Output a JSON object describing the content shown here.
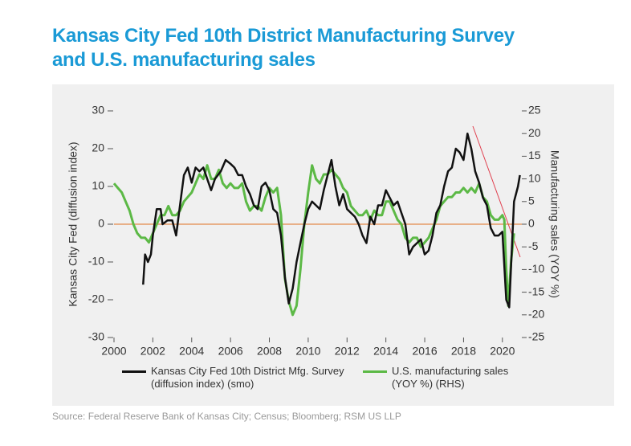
{
  "chart_data": {
    "type": "line",
    "title": "Kansas City Fed 10th District Manufacturing Survey and U.S. manufacturing sales",
    "ylabel": "Kansas City Fed (diffusion index)",
    "y2label": "Manufacturing sales (YOY %)",
    "source": "Source: Federal Reserve Bank of Kansas City; Census; Bloomberg; RSM US LLP",
    "xlim": [
      2000,
      2021
    ],
    "xticks": [
      2000,
      2002,
      2004,
      2006,
      2008,
      2010,
      2012,
      2014,
      2016,
      2018,
      2020
    ],
    "ylim": [
      -30,
      30
    ],
    "yticks": [
      -30,
      -20,
      -10,
      0,
      10,
      20,
      30
    ],
    "y2lim": [
      -25,
      25
    ],
    "y2ticks": [
      -25,
      -20,
      -15,
      -10,
      -5,
      0,
      5,
      10,
      15,
      20,
      25
    ],
    "series": [
      {
        "name": "Kansas City Fed 10th District Mfg. Survey (diffusion index) (smo)",
        "color": "#111111",
        "x": [
          2001.5,
          2001.6,
          2001.75,
          2001.9,
          2002.0,
          2002.2,
          2002.4,
          2002.5,
          2002.75,
          2003.0,
          2003.2,
          2003.4,
          2003.6,
          2003.8,
          2004.0,
          2004.2,
          2004.4,
          2004.6,
          2004.8,
          2005.0,
          2005.2,
          2005.5,
          2005.75,
          2006.0,
          2006.2,
          2006.4,
          2006.6,
          2006.8,
          2007.0,
          2007.2,
          2007.4,
          2007.6,
          2007.8,
          2008.0,
          2008.2,
          2008.4,
          2008.6,
          2008.8,
          2009.0,
          2009.2,
          2009.4,
          2009.6,
          2009.8,
          2010.0,
          2010.2,
          2010.4,
          2010.6,
          2010.8,
          2011.0,
          2011.2,
          2011.4,
          2011.6,
          2011.8,
          2012.0,
          2012.2,
          2012.4,
          2012.6,
          2012.8,
          2013.0,
          2013.2,
          2013.4,
          2013.6,
          2013.8,
          2014.0,
          2014.2,
          2014.4,
          2014.6,
          2014.8,
          2015.0,
          2015.2,
          2015.4,
          2015.6,
          2015.8,
          2016.0,
          2016.2,
          2016.4,
          2016.6,
          2016.8,
          2017.0,
          2017.2,
          2017.4,
          2017.6,
          2017.8,
          2018.0,
          2018.2,
          2018.4,
          2018.6,
          2018.8,
          2019.0,
          2019.2,
          2019.4,
          2019.6,
          2019.8,
          2020.0,
          2020.2,
          2020.35,
          2020.5,
          2020.6,
          2020.8,
          2020.9
        ],
        "values": [
          -16,
          -8,
          -10,
          -8,
          -3,
          4,
          4,
          0,
          1,
          1,
          -3,
          5,
          13,
          15,
          11,
          15,
          14,
          15,
          12,
          9,
          12,
          14,
          17,
          16,
          15,
          13,
          13,
          10,
          8,
          5,
          4,
          10,
          11,
          9,
          4,
          3,
          -3,
          -14,
          -21,
          -17,
          -10,
          -5,
          0,
          4,
          6,
          5,
          4,
          9,
          13,
          17,
          10,
          5,
          8,
          4,
          3,
          2,
          0,
          -3,
          -5,
          2,
          0,
          5,
          5,
          9,
          7,
          5,
          6,
          3,
          0,
          -8,
          -6,
          -5,
          -4,
          -8,
          -7,
          -3,
          3,
          5,
          10,
          14,
          15,
          20,
          19,
          17,
          24,
          20,
          14,
          11,
          7,
          5,
          -1,
          -3,
          -3,
          -2,
          -20,
          -22,
          -5,
          6,
          10,
          13
        ]
      },
      {
        "name": "U.S. manufacturing sales (YOY %) (RHS)",
        "color": "#5cb946",
        "axis": "y2",
        "x": [
          2000.0,
          2000.2,
          2000.4,
          2000.6,
          2000.8,
          2001.0,
          2001.2,
          2001.4,
          2001.6,
          2001.8,
          2002.0,
          2002.2,
          2002.4,
          2002.6,
          2002.8,
          2003.0,
          2003.2,
          2003.4,
          2003.6,
          2003.8,
          2004.0,
          2004.2,
          2004.4,
          2004.6,
          2004.8,
          2005.0,
          2005.2,
          2005.4,
          2005.6,
          2005.8,
          2006.0,
          2006.2,
          2006.4,
          2006.6,
          2006.8,
          2007.0,
          2007.2,
          2007.4,
          2007.6,
          2007.8,
          2008.0,
          2008.2,
          2008.4,
          2008.6,
          2008.8,
          2009.0,
          2009.2,
          2009.4,
          2009.6,
          2009.8,
          2010.0,
          2010.2,
          2010.4,
          2010.6,
          2010.8,
          2011.0,
          2011.2,
          2011.4,
          2011.6,
          2011.8,
          2012.0,
          2012.2,
          2012.4,
          2012.6,
          2012.8,
          2013.0,
          2013.2,
          2013.4,
          2013.6,
          2013.8,
          2014.0,
          2014.2,
          2014.4,
          2014.6,
          2014.8,
          2015.0,
          2015.2,
          2015.4,
          2015.6,
          2015.8,
          2016.0,
          2016.2,
          2016.4,
          2016.6,
          2016.8,
          2017.0,
          2017.2,
          2017.4,
          2017.6,
          2017.8,
          2018.0,
          2018.2,
          2018.4,
          2018.6,
          2018.8,
          2019.0,
          2019.2,
          2019.4,
          2019.6,
          2019.8,
          2020.0,
          2020.1,
          2020.2,
          2020.3,
          2020.45,
          2020.6
        ],
        "values": [
          9,
          8,
          7,
          5,
          3,
          0,
          -2,
          -3,
          -3,
          -4,
          -2,
          0,
          2,
          2,
          4,
          2,
          2,
          3,
          5,
          6,
          7,
          9,
          11,
          10,
          13,
          10,
          10,
          12,
          9,
          8,
          9,
          8,
          8,
          9,
          5,
          3,
          4,
          4,
          3,
          6,
          8,
          7,
          8,
          2,
          -12,
          -17,
          -20,
          -18,
          -10,
          0,
          7,
          13,
          10,
          9,
          11,
          11,
          12,
          11,
          10,
          8,
          7,
          4,
          3,
          2,
          2,
          3,
          1,
          3,
          2,
          2,
          5,
          5,
          3,
          1,
          0,
          -3,
          -4,
          -3,
          -3,
          -5,
          -4,
          -3,
          -1,
          1,
          4,
          5,
          6,
          6,
          7,
          7,
          8,
          7,
          8,
          7,
          9,
          6,
          5,
          2,
          1,
          1,
          2,
          1,
          -10,
          -18,
          -8,
          -2
        ]
      }
    ]
  }
}
